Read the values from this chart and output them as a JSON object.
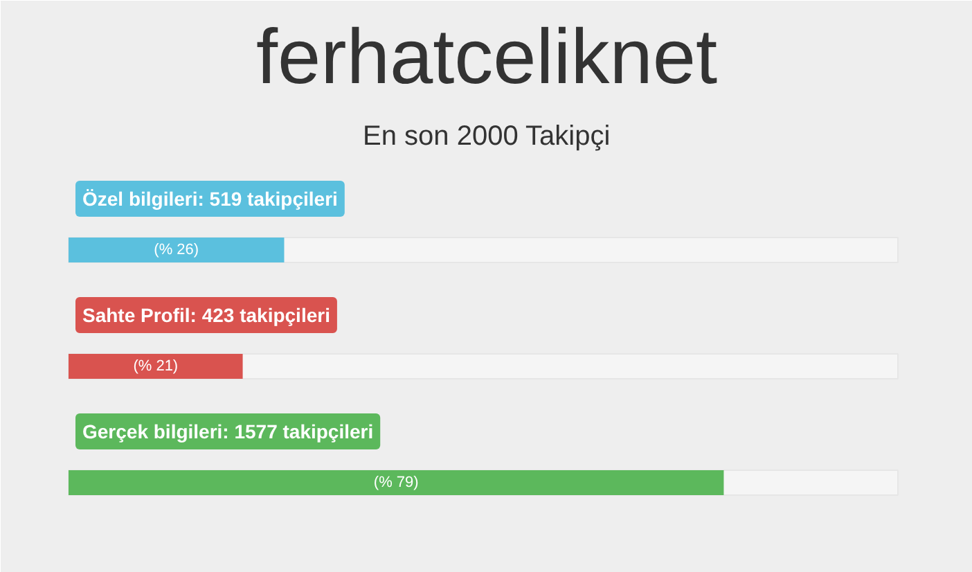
{
  "chart_data": {
    "type": "bar",
    "orientation": "horizontal",
    "title": "ferhatceliknet",
    "subtitle": "En son 2000 Takipçi",
    "categories": [
      "Özel bilgileri: 519 takipçileri",
      "Sahte Profil: 423 takipçileri",
      "Gerçek bilgileri: 1577 takipçileri"
    ],
    "values": [
      26,
      21,
      79
    ],
    "colors": [
      "#5bc0de",
      "#d9534f",
      "#5cb85c"
    ],
    "value_labels": [
      "(% 26)",
      "(% 21)",
      "(% 79)"
    ],
    "xlim": [
      0,
      100
    ],
    "tick_labels": false,
    "grid": false
  }
}
